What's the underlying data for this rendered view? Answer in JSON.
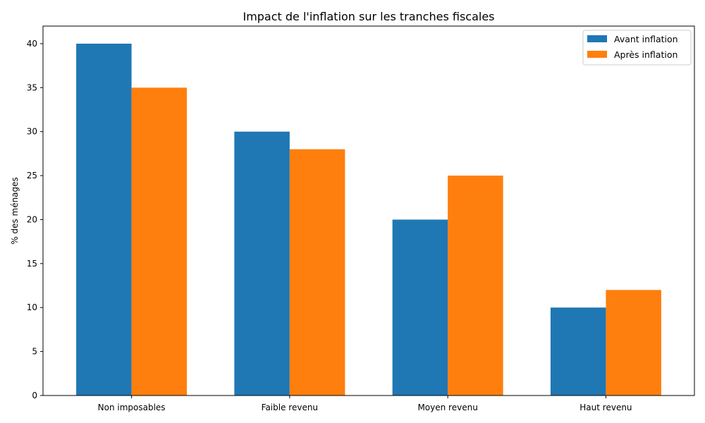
{
  "chart_data": {
    "type": "bar",
    "title": "Impact de l'inflation sur les tranches fiscales",
    "xlabel": "",
    "ylabel": "% des ménages",
    "categories": [
      "Non imposables",
      "Faible revenu",
      "Moyen revenu",
      "Haut revenu"
    ],
    "series": [
      {
        "name": "Avant inflation",
        "values": [
          40,
          30,
          20,
          10
        ],
        "color": "#1f77b4"
      },
      {
        "name": "Après inflation",
        "values": [
          35,
          28,
          25,
          12
        ],
        "color": "#ff7f0e"
      }
    ],
    "ylim": [
      0,
      42
    ],
    "yticks": [
      0,
      5,
      10,
      15,
      20,
      25,
      30,
      35,
      40
    ],
    "grid": false,
    "legend_position": "top-right"
  }
}
